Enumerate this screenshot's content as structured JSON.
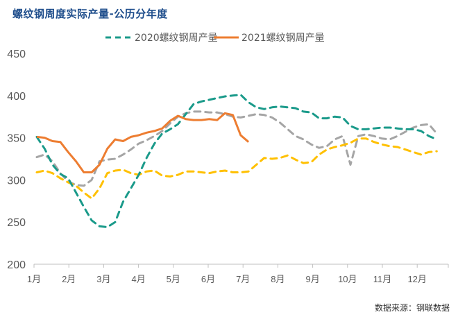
{
  "chart_data": {
    "type": "line",
    "title": "螺纹钢周度实际产量-公历分年度",
    "source": "数据来源：钢联数据",
    "xlabel": "",
    "ylabel": "",
    "x_tick_labels": [
      "1月",
      "2月",
      "3月",
      "4月",
      "5月",
      "6月",
      "7月",
      "8月",
      "9月",
      "10月",
      "11月",
      "12月"
    ],
    "y_ticks": [
      200,
      250,
      300,
      350,
      400,
      450
    ],
    "ylim": [
      200,
      450
    ],
    "grid": false,
    "legend_position": "top",
    "series": [
      {
        "name": "",
        "color": "#a5a5a5",
        "style": "dashed",
        "values": [
          327,
          330,
          322,
          308,
          298,
          294,
          293,
          300,
          322,
          324,
          325,
          330,
          336,
          343,
          347,
          352,
          358,
          367,
          375,
          379,
          381,
          381,
          380,
          380,
          378,
          375,
          374,
          376,
          378,
          377,
          374,
          368,
          360,
          352,
          348,
          342,
          338,
          340,
          348,
          352,
          318,
          352,
          354,
          352,
          349,
          348,
          352,
          357,
          362,
          365,
          366,
          355
        ]
      },
      {
        "name": "",
        "color": "#ffc000",
        "style": "dashed",
        "values": [
          309,
          311,
          308,
          302,
          297,
          293,
          285,
          278,
          290,
          308,
          311,
          312,
          308,
          306,
          310,
          311,
          305,
          304,
          306,
          310,
          310,
          309,
          308,
          310,
          311,
          309,
          309,
          310,
          318,
          326,
          325,
          326,
          329,
          324,
          320,
          321,
          330,
          336,
          339,
          341,
          344,
          349,
          349,
          345,
          342,
          340,
          339,
          336,
          333,
          330,
          333,
          334
        ]
      },
      {
        "name": "2020螺纹钢周产量",
        "color": "#1a9a8a",
        "style": "dashed",
        "values": [
          351,
          337,
          318,
          307,
          302,
          285,
          268,
          252,
          245,
          244,
          250,
          274,
          290,
          306,
          326,
          343,
          355,
          360,
          366,
          378,
          390,
          393,
          395,
          397,
          399,
          400,
          401,
          392,
          386,
          384,
          386,
          387,
          386,
          385,
          381,
          380,
          373,
          373,
          375,
          374,
          364,
          360,
          360,
          361,
          362,
          362,
          361,
          360,
          360,
          358,
          352,
          348
        ]
      },
      {
        "name": "2021螺纹钢周产量",
        "color": "#ed7d31",
        "style": "solid",
        "values": [
          351,
          350,
          346,
          345,
          333,
          322,
          309,
          309,
          318,
          337,
          348,
          346,
          351,
          353,
          356,
          358,
          361,
          370,
          376,
          372,
          371,
          371,
          372,
          371,
          379,
          377,
          353,
          345
        ]
      }
    ]
  }
}
